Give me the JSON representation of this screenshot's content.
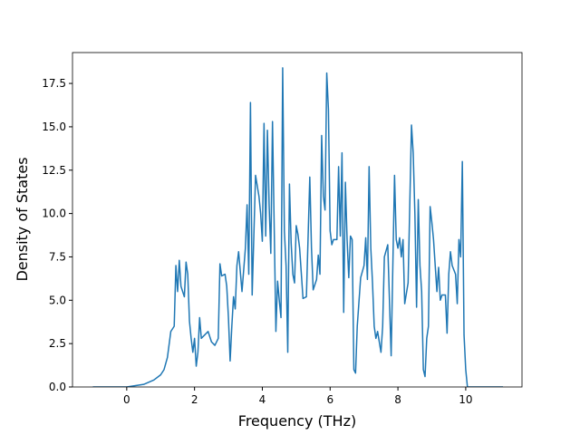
{
  "chart_data": {
    "type": "line",
    "xlabel": "Frequency (THz)",
    "ylabel": "Density of States",
    "color": "#1f77b4",
    "xlim": [
      -1.6,
      11.66
    ],
    "ylim": [
      0,
      19.28
    ],
    "xticks": [
      0,
      2,
      4,
      6,
      8,
      10
    ],
    "yticks": [
      {
        "value": 0,
        "label": "0.0"
      },
      {
        "value": 2.5,
        "label": "2.5"
      },
      {
        "value": 5,
        "label": "5.0"
      },
      {
        "value": 7.5,
        "label": "7.5"
      },
      {
        "value": 10,
        "label": "10.0"
      },
      {
        "value": 12.5,
        "label": "12.5"
      },
      {
        "value": 15,
        "label": "15.0"
      },
      {
        "value": 17.5,
        "label": "17.5"
      }
    ],
    "x": [
      -1.0,
      0.0,
      0.5,
      0.8,
      1.0,
      1.1,
      1.2,
      1.3,
      1.4,
      1.45,
      1.5,
      1.55,
      1.6,
      1.7,
      1.75,
      1.8,
      1.85,
      1.9,
      1.95,
      2.0,
      2.05,
      2.1,
      2.15,
      2.2,
      2.3,
      2.4,
      2.5,
      2.6,
      2.7,
      2.75,
      2.8,
      2.9,
      2.95,
      3.0,
      3.05,
      3.1,
      3.15,
      3.2,
      3.25,
      3.3,
      3.4,
      3.5,
      3.55,
      3.6,
      3.65,
      3.7,
      3.8,
      3.9,
      3.95,
      4.0,
      4.05,
      4.1,
      4.15,
      4.2,
      4.25,
      4.3,
      4.4,
      4.45,
      4.5,
      4.55,
      4.6,
      4.65,
      4.7,
      4.75,
      4.8,
      4.85,
      4.9,
      4.95,
      5.0,
      5.05,
      5.1,
      5.2,
      5.3,
      5.4,
      5.45,
      5.5,
      5.6,
      5.65,
      5.7,
      5.75,
      5.8,
      5.85,
      5.9,
      5.95,
      6.0,
      6.05,
      6.1,
      6.2,
      6.25,
      6.3,
      6.35,
      6.4,
      6.45,
      6.5,
      6.55,
      6.6,
      6.65,
      6.7,
      6.75,
      6.8,
      6.9,
      7.0,
      7.05,
      7.1,
      7.15,
      7.2,
      7.25,
      7.3,
      7.35,
      7.4,
      7.5,
      7.55,
      7.6,
      7.7,
      7.8,
      7.9,
      7.95,
      8.0,
      8.05,
      8.1,
      8.15,
      8.2,
      8.3,
      8.4,
      8.45,
      8.5,
      8.55,
      8.6,
      8.65,
      8.7,
      8.75,
      8.8,
      8.85,
      8.9,
      8.95,
      9.0,
      9.05,
      9.1,
      9.15,
      9.2,
      9.25,
      9.3,
      9.4,
      9.45,
      9.5,
      9.55,
      9.6,
      9.7,
      9.75,
      9.8,
      9.85,
      9.9,
      9.95,
      10.0,
      10.05,
      10.1,
      11.1
    ],
    "values": [
      0,
      0,
      0.15,
      0.4,
      0.7,
      1.0,
      1.7,
      3.2,
      3.5,
      7.0,
      5.5,
      7.3,
      5.8,
      5.2,
      7.2,
      6.5,
      3.8,
      2.8,
      2.0,
      2.8,
      1.2,
      2.0,
      4.0,
      2.8,
      3.0,
      3.2,
      2.6,
      2.4,
      2.8,
      7.1,
      6.4,
      6.5,
      5.8,
      4.0,
      1.5,
      3.5,
      5.2,
      4.5,
      7.0,
      7.8,
      5.5,
      8.0,
      10.5,
      6.5,
      16.4,
      5.3,
      12.2,
      11.0,
      10.0,
      8.4,
      15.2,
      8.7,
      14.8,
      10.5,
      7.7,
      15.3,
      3.2,
      6.1,
      5.0,
      4.0,
      18.4,
      9.0,
      7.0,
      2.0,
      11.7,
      8.3,
      6.5,
      6.0,
      9.3,
      8.8,
      8.0,
      5.1,
      5.2,
      12.1,
      8.0,
      5.6,
      6.2,
      7.6,
      6.5,
      14.5,
      11.0,
      10.2,
      18.1,
      16.0,
      9.0,
      8.2,
      8.5,
      8.5,
      12.7,
      8.7,
      13.5,
      4.3,
      11.8,
      8.5,
      6.3,
      8.7,
      8.5,
      1.0,
      0.8,
      3.5,
      6.3,
      7.0,
      8.6,
      6.2,
      12.7,
      8.0,
      6.0,
      3.5,
      2.8,
      3.2,
      2.0,
      3.5,
      7.5,
      8.2,
      1.8,
      12.2,
      8.5,
      8.0,
      8.6,
      7.5,
      8.5,
      4.8,
      6.0,
      15.1,
      13.5,
      10.0,
      4.6,
      10.8,
      7.0,
      5.5,
      1.0,
      0.6,
      2.8,
      3.5,
      10.4,
      9.5,
      8.5,
      7.0,
      5.5,
      6.9,
      5.0,
      5.3,
      5.3,
      3.1,
      6.5,
      7.8,
      7.0,
      6.5,
      4.8,
      8.5,
      7.5,
      13.0,
      3.0,
      1.0,
      0,
      0,
      0
    ]
  }
}
